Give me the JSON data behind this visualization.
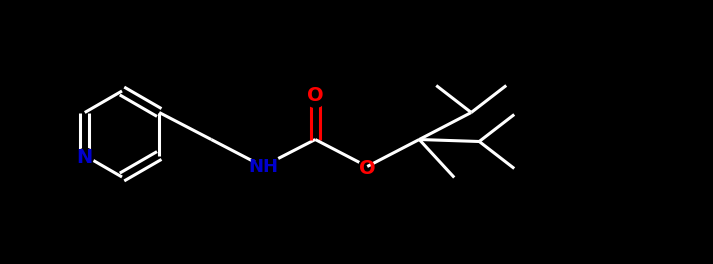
{
  "bg_color": "#000000",
  "bond_color": "#ffffff",
  "N_color": "#0000cc",
  "O_color": "#ff0000",
  "lw": 2.2,
  "fs": 14,
  "fig_width": 7.13,
  "fig_height": 2.64,
  "dpi": 100,
  "xlim": [
    0,
    7.13
  ],
  "ylim": [
    0,
    2.64
  ]
}
